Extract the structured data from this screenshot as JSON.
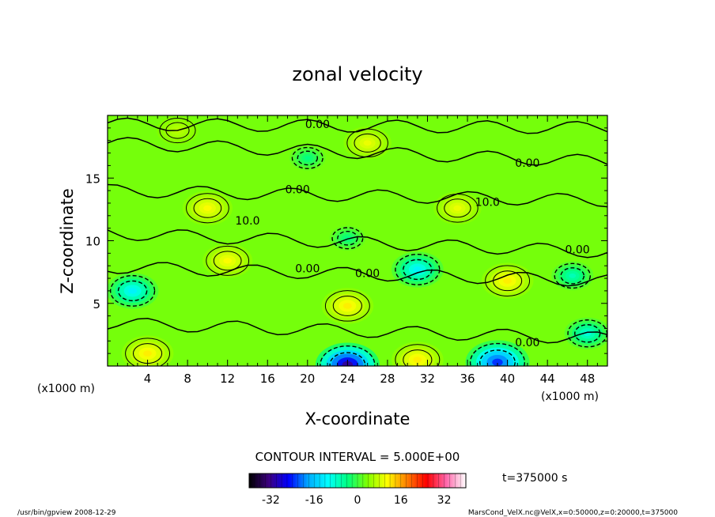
{
  "chart_data": {
    "type": "heatmap",
    "title": "zonal velocity",
    "xlabel": "X-coordinate",
    "ylabel": "Z-coordinate",
    "x_unit": "(x1000 m)",
    "z_unit": "(x1000 m)",
    "xlim": [
      0,
      50
    ],
    "ylim": [
      0,
      20
    ],
    "x_ticks": [
      "4",
      "8",
      "12",
      "16",
      "20",
      "24",
      "28",
      "32",
      "36",
      "40",
      "44",
      "48"
    ],
    "x_tick_values": [
      4,
      8,
      12,
      16,
      20,
      24,
      28,
      32,
      36,
      40,
      44,
      48
    ],
    "y_ticks": [
      "5",
      "10",
      "15"
    ],
    "y_tick_values": [
      5,
      10,
      15
    ],
    "contour_interval_text": "CONTOUR INTERVAL = 5.000E+00",
    "contour_interval": 5,
    "colorbar": {
      "ticks": [
        "-32",
        "-16",
        "0",
        "16",
        "32"
      ],
      "tick_values": [
        -32,
        -16,
        0,
        16,
        32
      ],
      "range": [
        -40,
        40
      ],
      "colors": [
        "#000000",
        "#3d0080",
        "#0000ff",
        "#00aaff",
        "#00ffff",
        "#00ff80",
        "#80ff00",
        "#ffff00",
        "#ff8000",
        "#ff0000",
        "#ff66aa",
        "#ffffff"
      ]
    },
    "contour_labels": [
      {
        "text": "0.00",
        "x": 21,
        "z": 19.3
      },
      {
        "text": "0.00",
        "x": 42,
        "z": 16.2
      },
      {
        "text": "0.00",
        "x": 19,
        "z": 14.1
      },
      {
        "text": "10.0",
        "x": 38,
        "z": 13.1
      },
      {
        "text": "10.0",
        "x": 14,
        "z": 11.6
      },
      {
        "text": "0.00",
        "x": 47,
        "z": 9.3
      },
      {
        "text": "0.00",
        "x": 20,
        "z": 7.8
      },
      {
        "text": "0.00",
        "x": 26,
        "z": 7.4
      },
      {
        "text": "0.00",
        "x": 42,
        "z": 1.9
      }
    ],
    "features": [
      {
        "x": 24,
        "z": 4.8,
        "value": 12,
        "kind": "max"
      },
      {
        "x": 40,
        "z": 6.8,
        "value": 12,
        "kind": "max"
      },
      {
        "x": 12,
        "z": 8.4,
        "value": 11,
        "kind": "max"
      },
      {
        "x": 4,
        "z": 1.0,
        "value": 12,
        "kind": "max"
      },
      {
        "x": 31,
        "z": 0.5,
        "value": 12,
        "kind": "max"
      },
      {
        "x": 26,
        "z": 17.8,
        "value": 10,
        "kind": "max"
      },
      {
        "x": 10,
        "z": 12.6,
        "value": 11,
        "kind": "max"
      },
      {
        "x": 35,
        "z": 12.6,
        "value": 10,
        "kind": "max"
      },
      {
        "x": 7,
        "z": 18.8,
        "value": 7,
        "kind": "max"
      },
      {
        "x": 2.5,
        "z": 6.0,
        "value": -12,
        "kind": "min"
      },
      {
        "x": 31,
        "z": 7.7,
        "value": -12,
        "kind": "min"
      },
      {
        "x": 24,
        "z": 0.1,
        "value": -32,
        "kind": "min"
      },
      {
        "x": 39,
        "z": 0.3,
        "value": -24,
        "kind": "min"
      },
      {
        "x": 48,
        "z": 2.6,
        "value": -9,
        "kind": "min"
      },
      {
        "x": 46.5,
        "z": 7.2,
        "value": -7,
        "kind": "min"
      },
      {
        "x": 20,
        "z": 16.6,
        "value": -4,
        "kind": "min"
      },
      {
        "x": 24,
        "z": 10.2,
        "value": -4,
        "kind": "min"
      }
    ]
  },
  "time_label": "t=375000 s",
  "footer_left": "/usr/bin/gpview   2008-12-29",
  "footer_right": "MarsCond_VelX.nc@VelX,x=0:50000,z=0:20000,t=375000"
}
